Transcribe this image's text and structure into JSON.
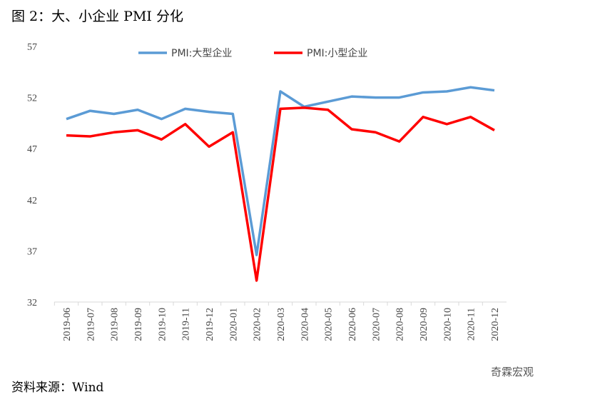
{
  "title": "图 2：大、小企业 PMI 分化",
  "source": "资料来源：Wind",
  "watermark": "奇霖宏观",
  "chart_data": {
    "type": "line",
    "title": "图 2：大、小企业 PMI 分化",
    "xlabel": "",
    "ylabel": "",
    "ylim": [
      32,
      57
    ],
    "yticks": [
      32,
      37,
      42,
      47,
      52,
      57
    ],
    "legend_position": "top",
    "categories": [
      "2019-06",
      "2019-07",
      "2019-08",
      "2019-09",
      "2019-10",
      "2019-11",
      "2019-12",
      "2020-01",
      "2020-02",
      "2020-03",
      "2020-04",
      "2020-05",
      "2020-06",
      "2020-07",
      "2020-08",
      "2020-09",
      "2020-10",
      "2020-11",
      "2020-12"
    ],
    "series": [
      {
        "name": "PMI:大型企业",
        "color": "#5B9BD5",
        "values": [
          49.9,
          50.7,
          50.4,
          50.8,
          49.9,
          50.9,
          50.6,
          50.4,
          36.6,
          52.6,
          51.1,
          51.6,
          52.1,
          52.0,
          52.0,
          52.5,
          52.6,
          53.0,
          52.7
        ]
      },
      {
        "name": "PMI:小型企业",
        "color": "#FF0000",
        "values": [
          48.3,
          48.2,
          48.6,
          48.8,
          47.9,
          49.4,
          47.2,
          48.6,
          34.1,
          50.9,
          51.0,
          50.8,
          48.9,
          48.6,
          47.7,
          50.1,
          49.4,
          50.1,
          48.8
        ]
      }
    ]
  }
}
